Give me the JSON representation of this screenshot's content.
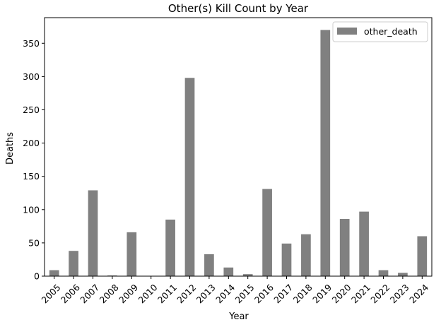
{
  "chart_data": {
    "type": "bar",
    "title": "Other(s) Kill Count by Year",
    "xlabel": "Year",
    "ylabel": "Deaths",
    "categories": [
      "2005",
      "2006",
      "2007",
      "2008",
      "2009",
      "2010",
      "2011",
      "2012",
      "2013",
      "2014",
      "2015",
      "2016",
      "2017",
      "2018",
      "2019",
      "2020",
      "2021",
      "2022",
      "2023",
      "2024"
    ],
    "series": [
      {
        "name": "other_death",
        "values": [
          9,
          38,
          129,
          1,
          66,
          0,
          85,
          298,
          33,
          13,
          3,
          131,
          49,
          63,
          370,
          86,
          97,
          9,
          5,
          60
        ]
      }
    ],
    "ylim": [
      0,
      388.5
    ],
    "yticks": [
      0,
      50,
      100,
      150,
      200,
      250,
      300,
      350
    ],
    "grid": false,
    "legend": "top-right",
    "colors": {
      "bar": "#808080",
      "axis": "#000000"
    }
  }
}
